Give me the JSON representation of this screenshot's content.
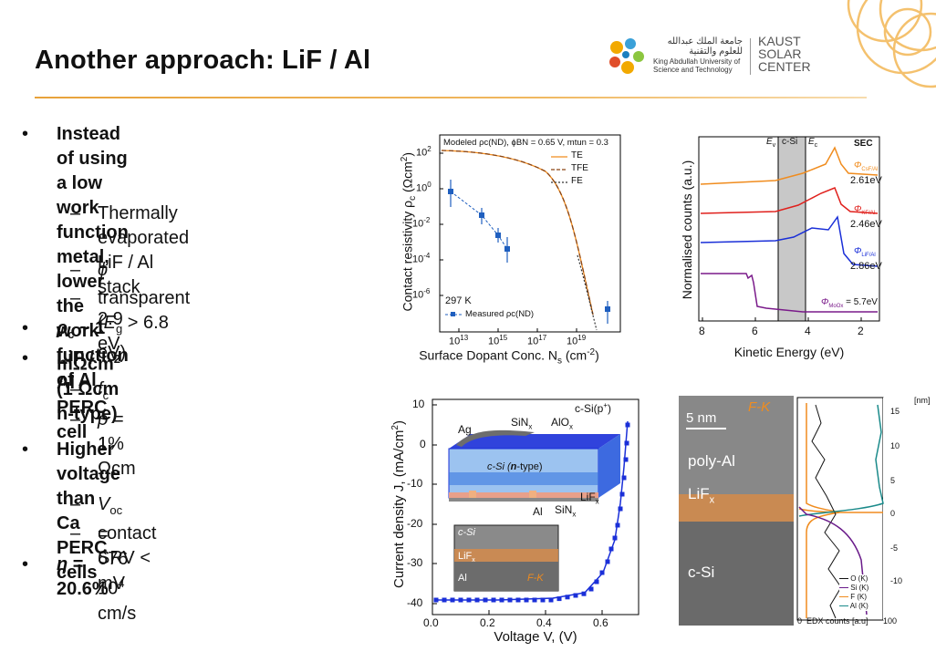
{
  "slide": {
    "title": "Another approach: LiF / Al"
  },
  "logos": {
    "kaust_arabic": "جامعة الملك عبدالله للعلوم والتقنية",
    "kaust_en_line1": "King Abdullah University of",
    "kaust_en_line2": "Science and Technology",
    "ksc_line1": "KAUST",
    "ksc_line2": "SOLAR",
    "ksc_line3": "CENTER"
  },
  "bullets": {
    "b1_line1": "Instead of using a low work",
    "b1_line2": "function metal, lower the work",
    "b1_line3": "function of Al",
    "s1_line1": "Thermally evaporated LiF / Al",
    "s1_line2": "stack",
    "s2_sym": "ϕ",
    "s2_rest": " ~ 2.9 eV",
    "s3_pre": "transparent (",
    "s3_sym": "E",
    "s3_sub": "g",
    "s3_post": " > 6.8 eV)",
    "b2_sym": "ρ",
    "b2_sub": "c",
    "b2_mid": " ~ 1 mΩcm",
    "b2_sup": "2",
    "b2_post": " (1 Ωcm n-type)",
    "b3": "LiF / Al PERC cell",
    "s4_sym": "f",
    "s4_sub": "c",
    "s4_rest": " ~ 1%",
    "s5_sym": "ρ",
    "s5_rest": " = 1 Ωcm",
    "b4_line1": "Higher voltage than Ca PERC",
    "b4_line2": "cells",
    "s6_sym": "V",
    "s6_sub": "oc",
    "s6_rest": " = 676 mV",
    "s7_pre": "contact SRV < 10",
    "s7_sup": "4",
    "s7_post": " cm/s",
    "b5_sym": "η",
    "b5_rest": " = 20.6%",
    "bullet_glyph": "•",
    "dash_glyph": "–"
  },
  "fig_contact": {
    "ylabel": "Contact resistivity ρ",
    "ylabel_sub": "c",
    "ylabel_unit": " (Ωcm",
    "ylabel_sup": "2",
    "ylabel_close": ")",
    "xlabel": "Surface Dopant Conc. N",
    "xlabel_sub": "s",
    "xlabel_unit": " (cm",
    "xlabel_sup": "-2",
    "xlabel_close": ")",
    "model_label": "Modeled ρc(ND), ϕBN = 0.65 V, mtun = 0.3",
    "legend_te": "TE",
    "legend_tfe": "TFE",
    "legend_fe": "FE",
    "temp": "297 K",
    "measured": "Measured ρc(ND)",
    "yticks": [
      "10",
      "10",
      "10",
      "10",
      "10"
    ],
    "yexp": [
      "2",
      "0",
      "-2",
      "-4",
      "-6"
    ],
    "xticks": [
      "10",
      "10",
      "10",
      "10"
    ],
    "xexp": [
      "13",
      "15",
      "17",
      "19"
    ]
  },
  "fig_sec": {
    "ylabel": "Normalised counts (a.u.)",
    "xlabel": "Kinetic Energy (eV)",
    "xticks": [
      "8",
      "6",
      "4",
      "2"
    ],
    "ev": "E",
    "ev_sub": "v",
    "csi": "c-Si",
    "ec": "E",
    "ec_sub": "c",
    "sec": "SEC",
    "phi1": "Φ",
    "phi1_sub": "CsF/Al",
    "phi1_val": "2.61eV",
    "phi2": "Φ",
    "phi2_sub": "KF/Al",
    "phi2_val": "2.46eV",
    "phi3": "Φ",
    "phi3_sub": "LiF/Al",
    "phi3_val": "2.86eV",
    "phi4": "Φ",
    "phi4_sub": "MoOx",
    "phi4_val": " = 5.7eV",
    "colors": {
      "cs": "#f08c1e",
      "kf": "#e0201c",
      "lif": "#1a2fd8",
      "moo": "#7a1a8a"
    }
  },
  "fig_jv": {
    "ylabel": "Current density J, (mA/cm",
    "ylabel_sup": "2",
    "ylabel_close": ")",
    "xlabel": "Voltage V, (V)",
    "yticks": [
      "10",
      "0",
      "-10",
      "-20",
      "-30",
      "-40"
    ],
    "xticks": [
      "0.0",
      "0.2",
      "0.4",
      "0.6"
    ],
    "inset_ag": "Ag",
    "inset_sinx": "SiN",
    "inset_sinx_sub": "x",
    "inset_alox": "AlO",
    "inset_alox_sub": "x",
    "inset_csip": "c-Si(p",
    "inset_csip_sup": "+",
    "inset_csip_close": ")",
    "inset_csin_pre": "c-Si (",
    "inset_csin_n": "n",
    "inset_csin_post": "-type)",
    "inset_lifx": "LiF",
    "inset_lifx_sub": "x",
    "inset_al": "Al",
    "inset_sinx2": "SiN",
    "inset_sinx2_sub": "x",
    "tem_csi": "c-Si",
    "tem_lifx": "LiF",
    "tem_lifx_sub": "x",
    "tem_al": "Al",
    "tem_fk": "F-K"
  },
  "fig_tem": {
    "scale": "5 nm",
    "fk": "F-K",
    "polyal": "poly-Al",
    "lifx": "LiF",
    "lifx_sub": "x",
    "csi": "c-Si",
    "unit": "[nm]",
    "ticks": [
      "15",
      "10",
      "5",
      "0",
      "-5",
      "-10"
    ],
    "xlabel_0": "0",
    "xlabel": "EDX counts [a.u]",
    "xlabel_100": "100",
    "leg_o": "O (K)",
    "leg_si": "Si (K)",
    "leg_f": "F (K)",
    "leg_al": "Al (K)",
    "colors": {
      "o": "#111111",
      "si": "#6a1b8a",
      "f": "#f08c1e",
      "al": "#1a8a8a"
    }
  }
}
